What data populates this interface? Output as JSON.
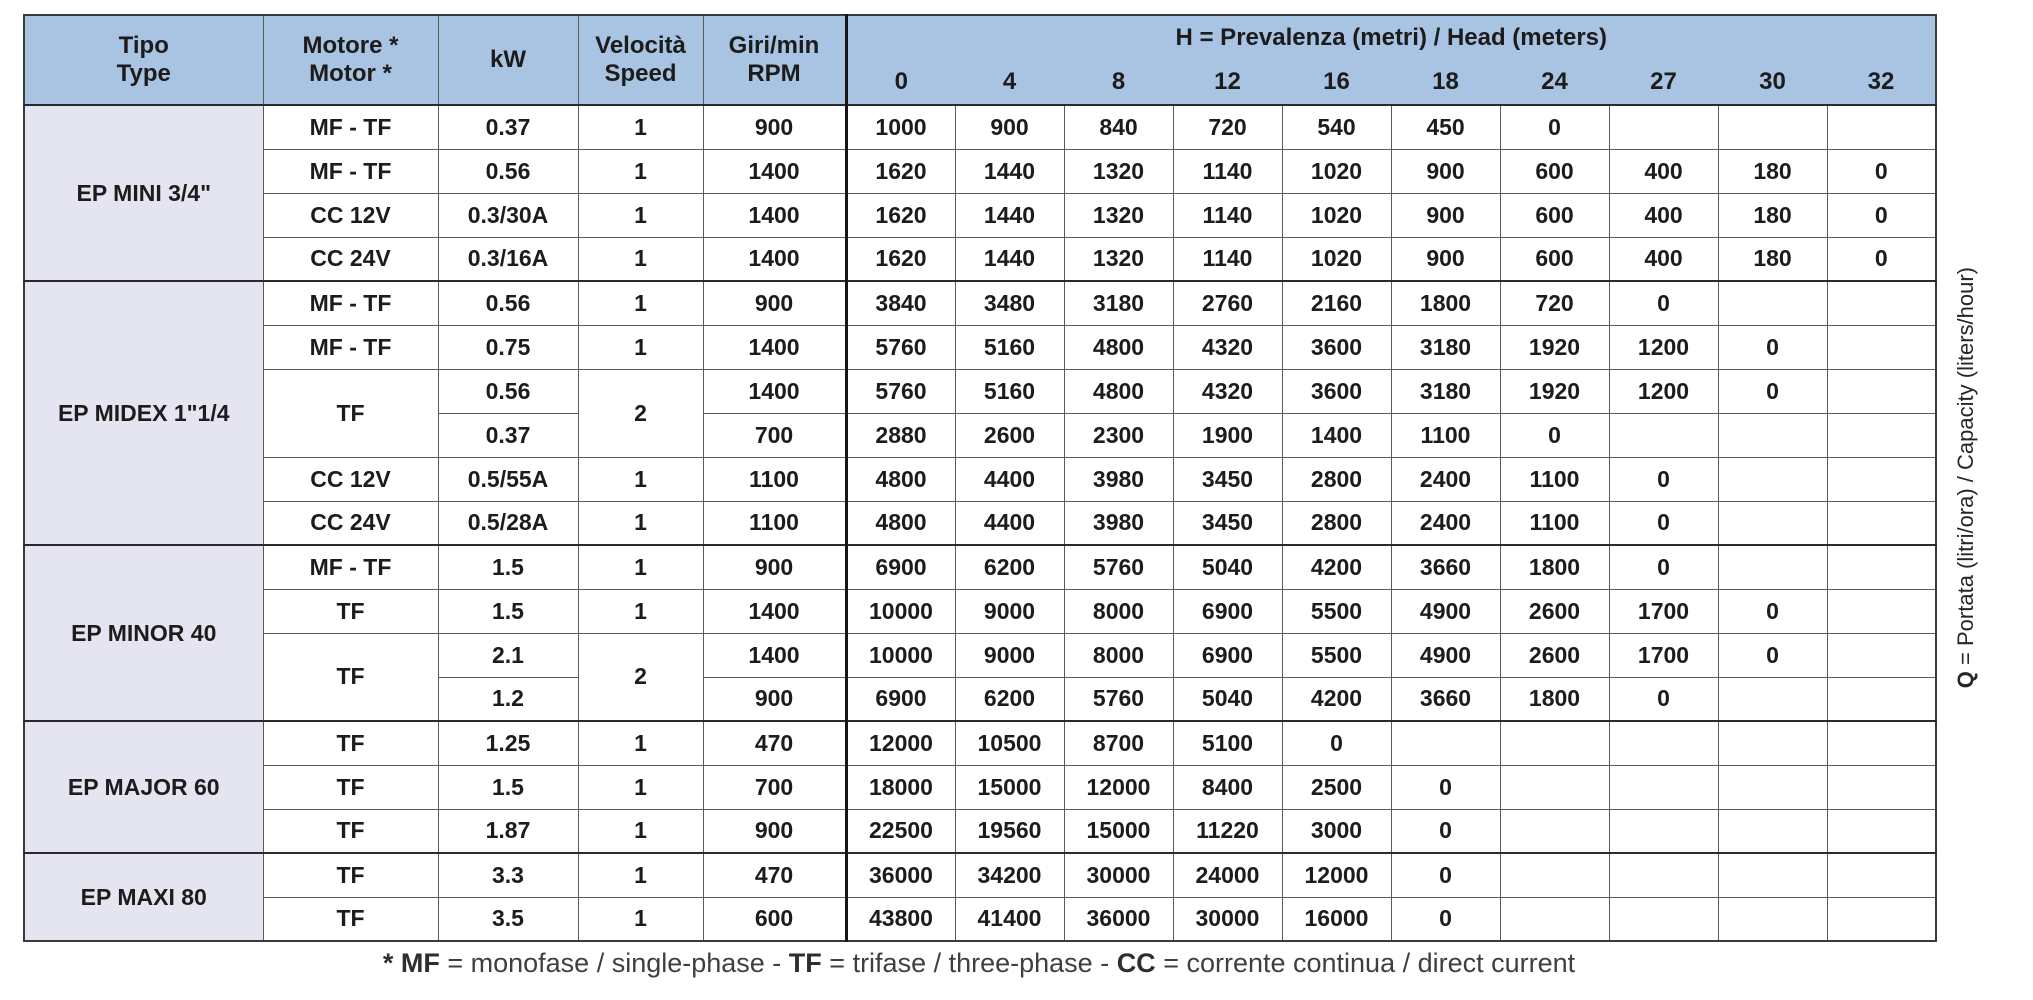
{
  "table": {
    "headers": {
      "tipo_line1": "Tipo",
      "tipo_line2": "Type",
      "motore_line1": "Motore *",
      "motore_line2": "Motor *",
      "kw": "kW",
      "velocita_line1": "Velocità",
      "velocita_line2": "Speed",
      "giri_line1": "Giri/min",
      "giri_line2": "RPM",
      "h_bold": "H",
      "h_rest": " = Prevalenza (metri) / Head (meters)",
      "h_values": [
        "0",
        "4",
        "8",
        "12",
        "16",
        "18",
        "24",
        "27",
        "30",
        "32"
      ]
    },
    "side_label": {
      "bold": "Q",
      "rest": " = Portata (litri/ora) / Capacity (liters/hour)"
    },
    "groups": [
      {
        "name": "EP MINI 3/4\"",
        "rows": [
          {
            "motor": "MF - TF",
            "kw": "0.37",
            "speed": "1",
            "rpm": "900",
            "values": [
              "1000",
              "900",
              "840",
              "720",
              "540",
              "450",
              "0",
              "",
              "",
              ""
            ]
          },
          {
            "motor": "MF - TF",
            "kw": "0.56",
            "speed": "1",
            "rpm": "1400",
            "values": [
              "1620",
              "1440",
              "1320",
              "1140",
              "1020",
              "900",
              "600",
              "400",
              "180",
              "0"
            ]
          },
          {
            "motor": "CC 12V",
            "kw": "0.3/30A",
            "speed": "1",
            "rpm": "1400",
            "values": [
              "1620",
              "1440",
              "1320",
              "1140",
              "1020",
              "900",
              "600",
              "400",
              "180",
              "0"
            ]
          },
          {
            "motor": "CC 24V",
            "kw": "0.3/16A",
            "speed": "1",
            "rpm": "1400",
            "values": [
              "1620",
              "1440",
              "1320",
              "1140",
              "1020",
              "900",
              "600",
              "400",
              "180",
              "0"
            ]
          }
        ]
      },
      {
        "name": "EP MIDEX 1\"1/4",
        "rows": [
          {
            "motor": "MF - TF",
            "kw": "0.56",
            "speed": "1",
            "rpm": "900",
            "values": [
              "3840",
              "3480",
              "3180",
              "2760",
              "2160",
              "1800",
              "720",
              "0",
              "",
              ""
            ]
          },
          {
            "motor": "MF - TF",
            "kw": "0.75",
            "speed": "1",
            "rpm": "1400",
            "values": [
              "5760",
              "5160",
              "4800",
              "4320",
              "3600",
              "3180",
              "1920",
              "1200",
              "0",
              ""
            ]
          },
          {
            "motor": "TF",
            "motor_span": 2,
            "kw": "0.56",
            "speed": "2",
            "speed_span": 2,
            "rpm": "1400",
            "values": [
              "5760",
              "5160",
              "4800",
              "4320",
              "3600",
              "3180",
              "1920",
              "1200",
              "0",
              ""
            ]
          },
          {
            "motor": null,
            "kw": "0.37",
            "speed": null,
            "rpm": "700",
            "values": [
              "2880",
              "2600",
              "2300",
              "1900",
              "1400",
              "1100",
              "0",
              "",
              "",
              ""
            ]
          },
          {
            "motor": "CC 12V",
            "kw": "0.5/55A",
            "speed": "1",
            "rpm": "1100",
            "values": [
              "4800",
              "4400",
              "3980",
              "3450",
              "2800",
              "2400",
              "1100",
              "0",
              "",
              ""
            ]
          },
          {
            "motor": "CC 24V",
            "kw": "0.5/28A",
            "speed": "1",
            "rpm": "1100",
            "values": [
              "4800",
              "4400",
              "3980",
              "3450",
              "2800",
              "2400",
              "1100",
              "0",
              "",
              ""
            ]
          }
        ]
      },
      {
        "name": "EP MINOR 40",
        "rows": [
          {
            "motor": "MF - TF",
            "kw": "1.5",
            "speed": "1",
            "rpm": "900",
            "values": [
              "6900",
              "6200",
              "5760",
              "5040",
              "4200",
              "3660",
              "1800",
              "0",
              "",
              ""
            ]
          },
          {
            "motor": "TF",
            "kw": "1.5",
            "speed": "1",
            "rpm": "1400",
            "values": [
              "10000",
              "9000",
              "8000",
              "6900",
              "5500",
              "4900",
              "2600",
              "1700",
              "0",
              ""
            ]
          },
          {
            "motor": "TF",
            "motor_span": 2,
            "kw": "2.1",
            "speed": "2",
            "speed_span": 2,
            "rpm": "1400",
            "values": [
              "10000",
              "9000",
              "8000",
              "6900",
              "5500",
              "4900",
              "2600",
              "1700",
              "0",
              ""
            ]
          },
          {
            "motor": null,
            "kw": "1.2",
            "speed": null,
            "rpm": "900",
            "values": [
              "6900",
              "6200",
              "5760",
              "5040",
              "4200",
              "3660",
              "1800",
              "0",
              "",
              ""
            ]
          }
        ]
      },
      {
        "name": "EP MAJOR 60",
        "rows": [
          {
            "motor": "TF",
            "kw": "1.25",
            "speed": "1",
            "rpm": "470",
            "values": [
              "12000",
              "10500",
              "8700",
              "5100",
              "0",
              "",
              "",
              "",
              "",
              ""
            ]
          },
          {
            "motor": "TF",
            "kw": "1.5",
            "speed": "1",
            "rpm": "700",
            "values": [
              "18000",
              "15000",
              "12000",
              "8400",
              "2500",
              "0",
              "",
              "",
              "",
              ""
            ]
          },
          {
            "motor": "TF",
            "kw": "1.87",
            "speed": "1",
            "rpm": "900",
            "values": [
              "22500",
              "19560",
              "15000",
              "11220",
              "3000",
              "0",
              "",
              "",
              "",
              ""
            ]
          }
        ]
      },
      {
        "name": "EP MAXI 80",
        "rows": [
          {
            "motor": "TF",
            "kw": "3.3",
            "speed": "1",
            "rpm": "470",
            "values": [
              "36000",
              "34200",
              "30000",
              "24000",
              "12000",
              "0",
              "",
              "",
              "",
              ""
            ]
          },
          {
            "motor": "TF",
            "kw": "3.5",
            "speed": "1",
            "rpm": "600",
            "values": [
              "43800",
              "41400",
              "36000",
              "30000",
              "16000",
              "0",
              "",
              "",
              "",
              ""
            ]
          }
        ]
      }
    ]
  },
  "footnote": {
    "segments": [
      {
        "bold": true,
        "text": "* MF"
      },
      {
        "bold": false,
        "text": " = monofase / single-phase - "
      },
      {
        "bold": true,
        "text": "TF"
      },
      {
        "bold": false,
        "text": " = trifase / three-phase - "
      },
      {
        "bold": true,
        "text": "CC"
      },
      {
        "bold": false,
        "text": " = corrente continua / direct current"
      }
    ]
  }
}
